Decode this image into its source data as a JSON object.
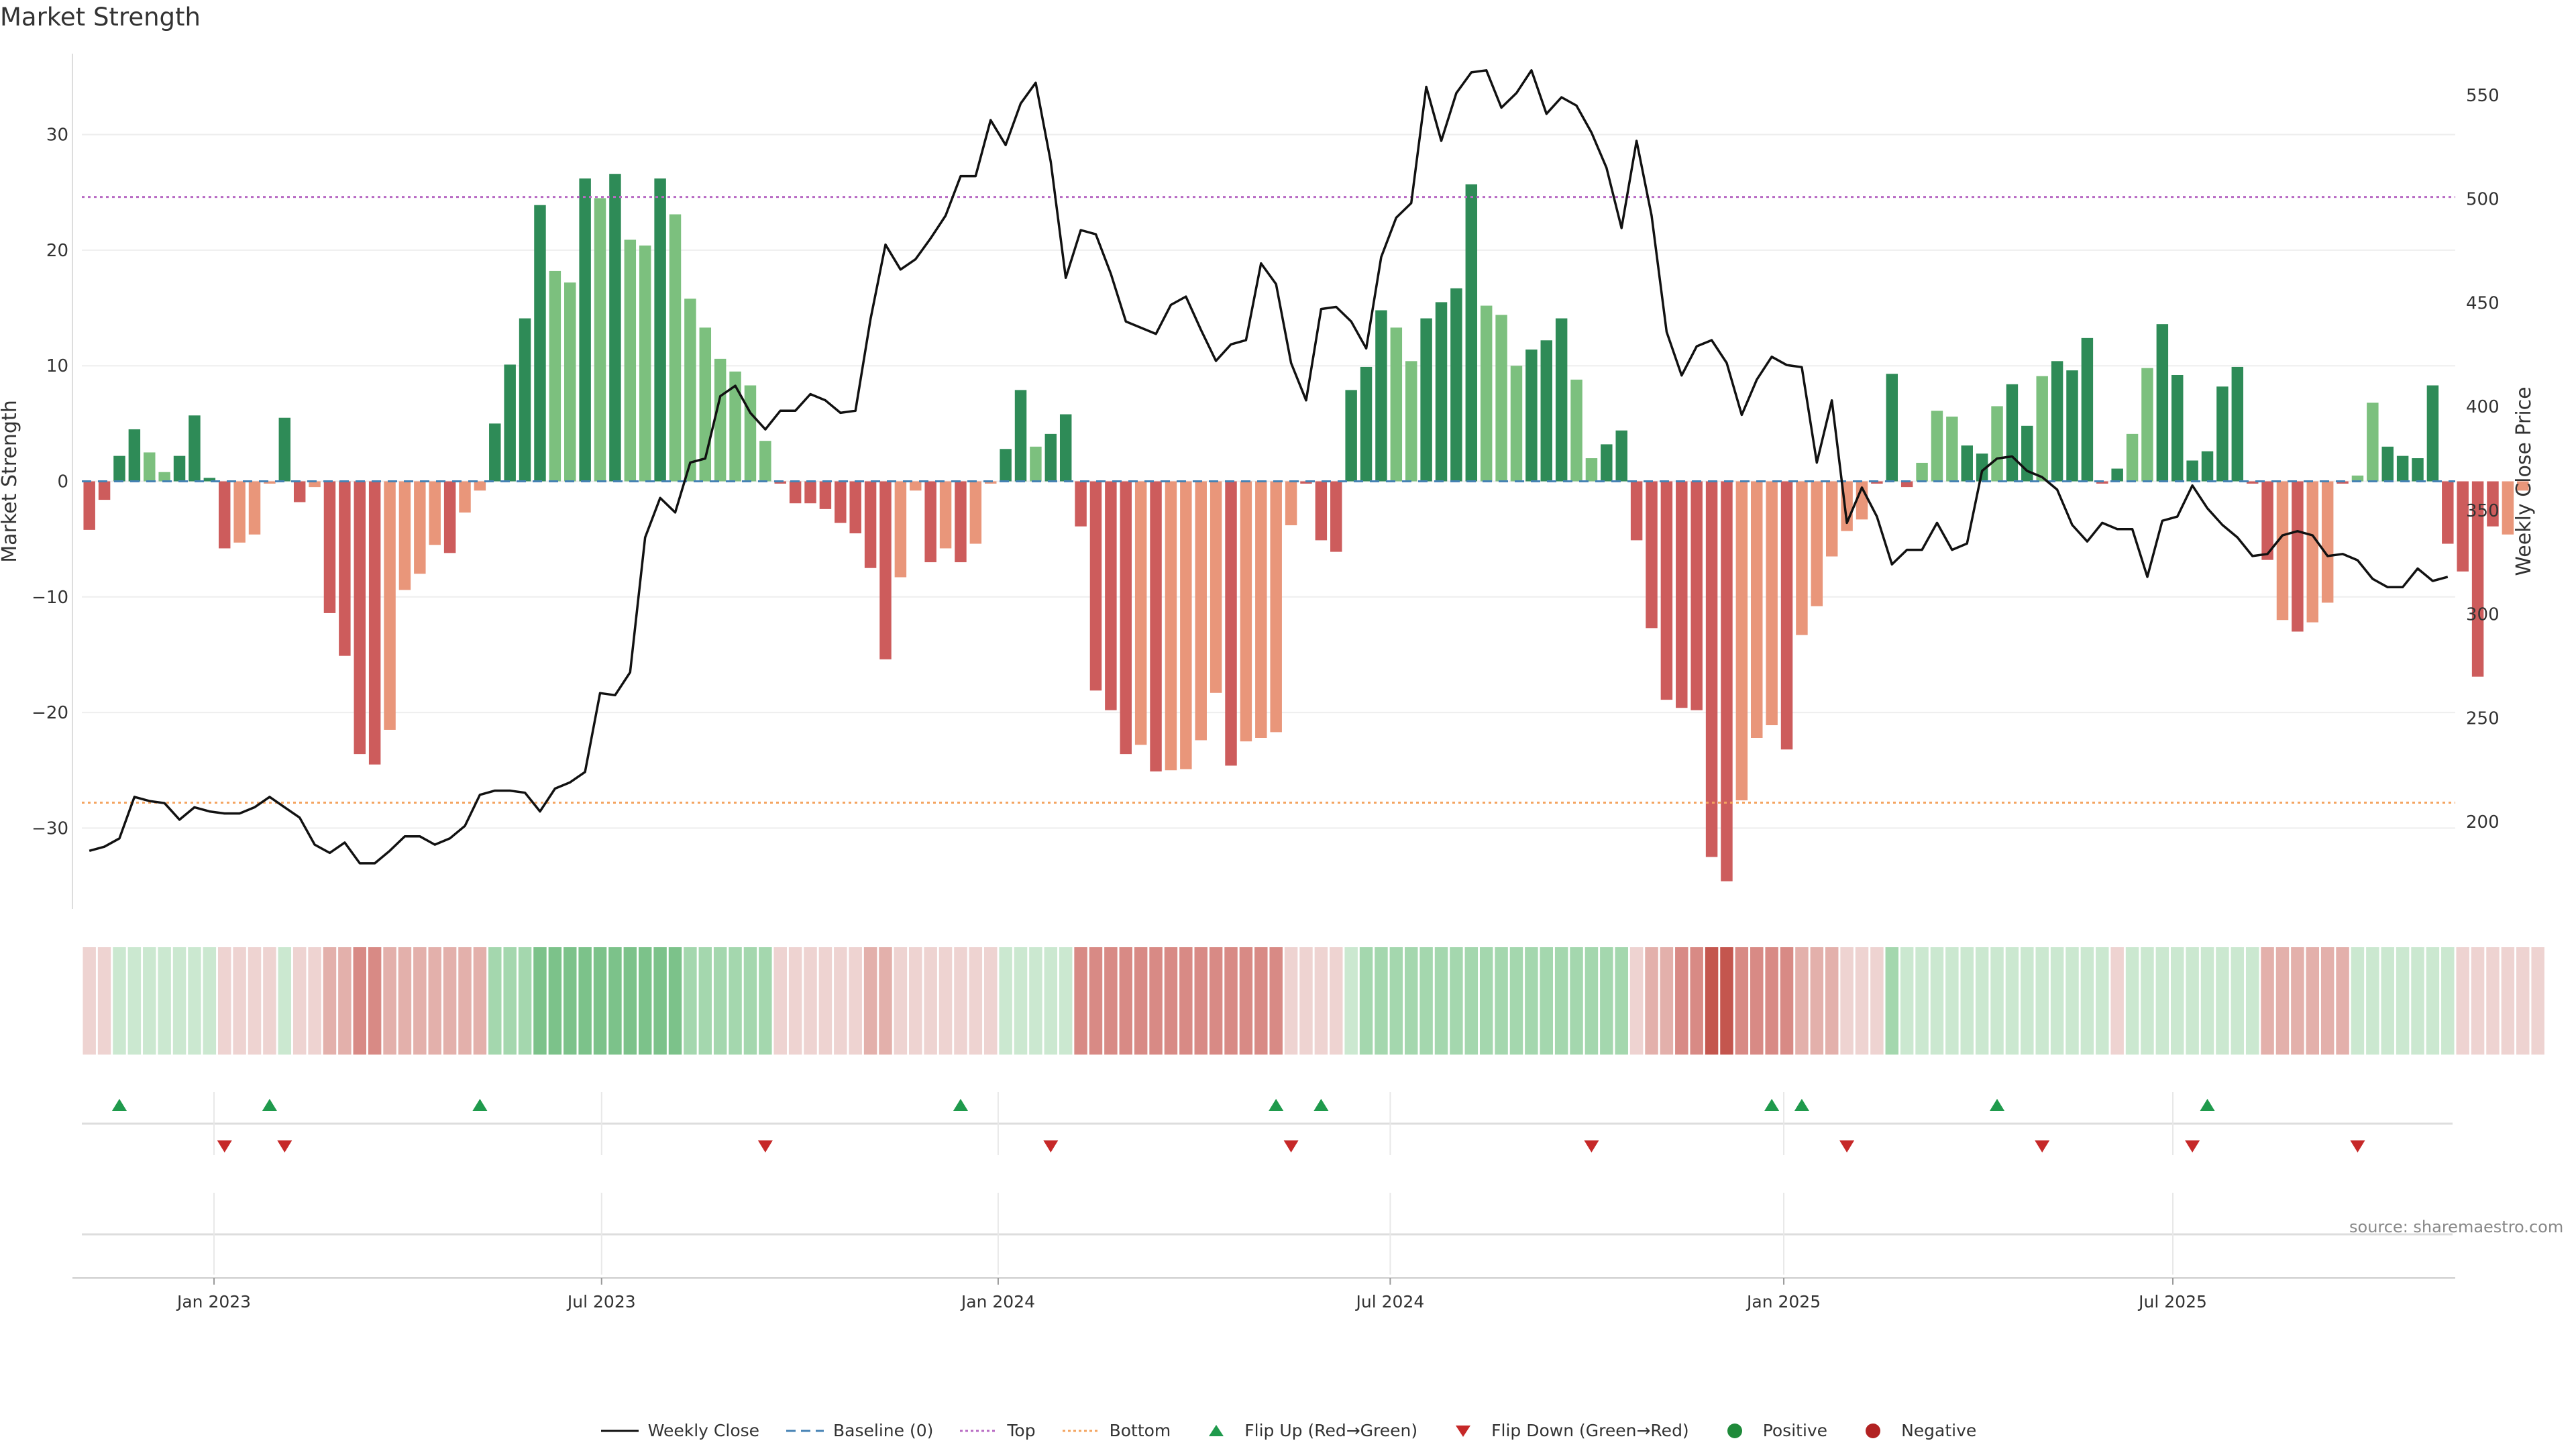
{
  "title": "Market Strength",
  "source": "source: sharemaestro.com",
  "colors": {
    "pos_strong": "#2e8b57",
    "pos_weak": "#7cc07e",
    "neg_strong": "#cd5c5c",
    "neg_weak": "#e9967a",
    "price": "#111111",
    "baseline": "#4682b4",
    "top": "#b86bc4",
    "bottom": "#f4a460",
    "flip_up": "#1f9a4c",
    "flip_down": "#c62828",
    "grid": "#eeeeee"
  },
  "legend": [
    {
      "kind": "line",
      "label": "Weekly Close",
      "color": "#111111"
    },
    {
      "kind": "dash",
      "label": "Baseline (0)",
      "color": "#4682b4"
    },
    {
      "kind": "dot",
      "label": "Top",
      "color": "#b86bc4"
    },
    {
      "kind": "dot",
      "label": "Bottom",
      "color": "#f4a460"
    },
    {
      "kind": "tri-up",
      "label": "Flip Up (Red→Green)",
      "color": "#1f9a4c"
    },
    {
      "kind": "tri-down",
      "label": "Flip Down (Green→Red)",
      "color": "#c62828"
    },
    {
      "kind": "circle",
      "label": "Positive",
      "color": "#1f8a3a"
    },
    {
      "kind": "circle",
      "label": "Negative",
      "color": "#b22222"
    }
  ],
  "chart_data": {
    "type": "bar",
    "title": "Market Strength",
    "ylabel": "Market Strength",
    "y2label": "Weekly Close Price",
    "ylim": [
      -37,
      37
    ],
    "y2lim": [
      158,
      570
    ],
    "yticks": [
      -30,
      -20,
      -10,
      0,
      10,
      20,
      30
    ],
    "y2ticks": [
      200,
      250,
      300,
      350,
      400,
      450,
      500,
      550
    ],
    "top_level": 24.6,
    "bottom_level": -27.8,
    "baseline": 0,
    "start_week": 1,
    "num_weeks": 158,
    "x_ticks": [
      {
        "label": "Jan 2023",
        "week": 9.3
      },
      {
        "label": "Jul 2023",
        "week": 35.1
      },
      {
        "label": "Jan 2024",
        "week": 61.5
      },
      {
        "label": "Jul 2024",
        "week": 87.6
      },
      {
        "label": "Jan 2025",
        "week": 113.8
      },
      {
        "label": "Jul 2025",
        "week": 139.7
      }
    ],
    "series": [
      {
        "name": "Market Strength",
        "type": "bar",
        "values": [
          -4.2,
          -1.6,
          2.2,
          4.5,
          2.5,
          0.8,
          2.2,
          5.7,
          0.3,
          -5.8,
          -5.3,
          -4.6,
          -0.2,
          5.5,
          -1.8,
          -0.5,
          -11.4,
          -15.1,
          -23.6,
          -24.5,
          -21.5,
          -9.4,
          -8.0,
          -5.5,
          -6.2,
          -2.7,
          -0.8,
          5.0,
          10.1,
          14.1,
          23.9,
          18.2,
          17.2,
          26.2,
          24.5,
          26.6,
          20.9,
          20.4,
          26.2,
          23.1,
          15.8,
          13.3,
          10.6,
          9.5,
          8.3,
          3.5,
          -0.2,
          -1.9,
          -1.9,
          -2.4,
          -3.6,
          -4.5,
          -7.5,
          -15.4,
          -8.3,
          -0.8,
          -7.0,
          -5.8,
          -7.0,
          -5.4,
          -0.2,
          2.8,
          7.9,
          3.0,
          4.1,
          5.8,
          -3.9,
          -18.1,
          -19.8,
          -23.6,
          -22.8,
          -25.1,
          -25.0,
          -24.9,
          -22.4,
          -18.3,
          -24.6,
          -22.5,
          -22.2,
          -21.7,
          -3.8,
          -0.2,
          -5.1,
          -6.1,
          7.9,
          9.9,
          14.8,
          13.3,
          10.4,
          14.1,
          15.5,
          16.7,
          25.7,
          15.2,
          14.4,
          10.0,
          11.4,
          12.2,
          14.1,
          8.8,
          2.0,
          3.2,
          4.4,
          -5.1,
          -12.7,
          -18.9,
          -19.6,
          -19.8,
          -32.5,
          -34.6,
          -27.6,
          -22.2,
          -21.1,
          -23.2,
          -13.3,
          -10.8,
          -6.5,
          -4.3,
          -3.3,
          -0.2,
          9.3,
          -0.5,
          1.6,
          6.1,
          5.6,
          3.1,
          2.4,
          6.5,
          8.4,
          4.8,
          9.1,
          10.4,
          9.6,
          12.4,
          -0.2,
          1.1,
          4.1,
          9.8,
          13.6,
          9.2,
          1.8,
          2.6,
          8.2,
          9.9,
          -0.2,
          -6.8,
          -12.0,
          -13.0,
          -12.2,
          -10.5,
          -0.2,
          0.5,
          6.8,
          3.0,
          2.2,
          2.0,
          8.3,
          -5.4,
          -7.8,
          -16.9,
          -3.9,
          -4.6,
          -0.8
        ],
        "strong": [
          1,
          1,
          1,
          1,
          0,
          0,
          1,
          1,
          1,
          1,
          0,
          0,
          0,
          1,
          1,
          0,
          1,
          1,
          1,
          1,
          0,
          0,
          0,
          0,
          1,
          0,
          0,
          1,
          1,
          1,
          1,
          0,
          0,
          1,
          0,
          1,
          0,
          0,
          1,
          0,
          0,
          0,
          0,
          0,
          0,
          0,
          1,
          1,
          1,
          1,
          1,
          1,
          1,
          1,
          0,
          0,
          1,
          0,
          1,
          0,
          0,
          1,
          1,
          0,
          1,
          1,
          1,
          1,
          1,
          1,
          0,
          1,
          0,
          0,
          0,
          0,
          1,
          0,
          0,
          0,
          0,
          1,
          1,
          1,
          1,
          1,
          1,
          0,
          0,
          1,
          1,
          1,
          1,
          0,
          0,
          0,
          1,
          1,
          1,
          0,
          0,
          1,
          1,
          1,
          1,
          1,
          1,
          1,
          1,
          1,
          0,
          0,
          0,
          1,
          0,
          0,
          0,
          0,
          0,
          1,
          1,
          1,
          0,
          0,
          0,
          1,
          1,
          0,
          1,
          1,
          0,
          1,
          1,
          1,
          1,
          1,
          0,
          0,
          1,
          1,
          1,
          1,
          1,
          1,
          1,
          1,
          0,
          1,
          0,
          0,
          1,
          0,
          0,
          1,
          1,
          1,
          1,
          1,
          1,
          1,
          1,
          0
        ]
      },
      {
        "name": "Weekly Close",
        "type": "line",
        "values": [
          186,
          188,
          192,
          212,
          210,
          209,
          201,
          207,
          205,
          204,
          204,
          207,
          212,
          207,
          202,
          189,
          185,
          190,
          180,
          180,
          186,
          193,
          193,
          189,
          192,
          198,
          213,
          215,
          215,
          214,
          205,
          216,
          219,
          224,
          262,
          261,
          272,
          337,
          356,
          349,
          373,
          375,
          405,
          410,
          397,
          389,
          398,
          398,
          406,
          403,
          397,
          398,
          442,
          478,
          466,
          471,
          481,
          492,
          511,
          511,
          538,
          526,
          546,
          556,
          518,
          462,
          485,
          483,
          464,
          441,
          438,
          435,
          449,
          453,
          437,
          422,
          430,
          432,
          469,
          459,
          421,
          403,
          447,
          448,
          441,
          428,
          472,
          491,
          498,
          554,
          528,
          551,
          561,
          562,
          544,
          551,
          562,
          541,
          549,
          545,
          532,
          515,
          486,
          528,
          492,
          436,
          415,
          429,
          432,
          421,
          396,
          413,
          424,
          420,
          419,
          373,
          403,
          344,
          361,
          347,
          324,
          331,
          331,
          344,
          331,
          334,
          369,
          375,
          376,
          369,
          366,
          360,
          343,
          335,
          344,
          341,
          341,
          318,
          345,
          347,
          362,
          351,
          343,
          337,
          328,
          329,
          338,
          340,
          338,
          328,
          329,
          326,
          317,
          313,
          313,
          322,
          316,
          318
        ]
      }
    ],
    "heat_strip": {
      "name": "Regime intensity",
      "values": [
        -1,
        -1,
        1,
        1,
        1,
        1,
        1,
        1,
        1,
        -1,
        -1,
        -1,
        -1,
        1,
        -1,
        -1,
        -2,
        -2,
        -3,
        -3,
        -2,
        -2,
        -2,
        -2,
        -2,
        -2,
        -2,
        2,
        2,
        2,
        3,
        3,
        3,
        3,
        3,
        3,
        3,
        3,
        3,
        3,
        2,
        2,
        2,
        2,
        2,
        2,
        -1,
        -1,
        -1,
        -1,
        -1,
        -1,
        -2,
        -2,
        -1,
        -1,
        -1,
        -1,
        -1,
        -1,
        -1,
        1,
        1,
        1,
        1,
        1,
        -3,
        -3,
        -3,
        -3,
        -3,
        -3,
        -3,
        -3,
        -3,
        -3,
        -3,
        -3,
        -3,
        -3,
        -1,
        -1,
        -1,
        -1,
        1,
        2,
        2,
        2,
        2,
        2,
        2,
        2,
        2,
        2,
        2,
        2,
        2,
        2,
        2,
        2,
        2,
        2,
        2,
        -1,
        -2,
        -2,
        -3,
        -3,
        -4,
        -4,
        -3,
        -3,
        -3,
        -3,
        -2,
        -2,
        -2,
        -1,
        -1,
        -1,
        2,
        1,
        1,
        1,
        1,
        1,
        1,
        1,
        1,
        1,
        1,
        1,
        1,
        1,
        1,
        -1,
        1,
        1,
        1,
        1,
        1,
        1,
        1,
        1,
        1,
        -2,
        -2,
        -2,
        -2,
        -2,
        -2,
        1,
        1,
        1,
        1,
        1,
        1,
        1,
        -1,
        -1,
        -1,
        -1,
        -1,
        -1
      ]
    },
    "flip_up_weeks": [
      3,
      13,
      27,
      59,
      80,
      83,
      113,
      115,
      128,
      142
    ],
    "flip_down_weeks": [
      10,
      14,
      46,
      65,
      81,
      101,
      118,
      131,
      141,
      152
    ]
  }
}
